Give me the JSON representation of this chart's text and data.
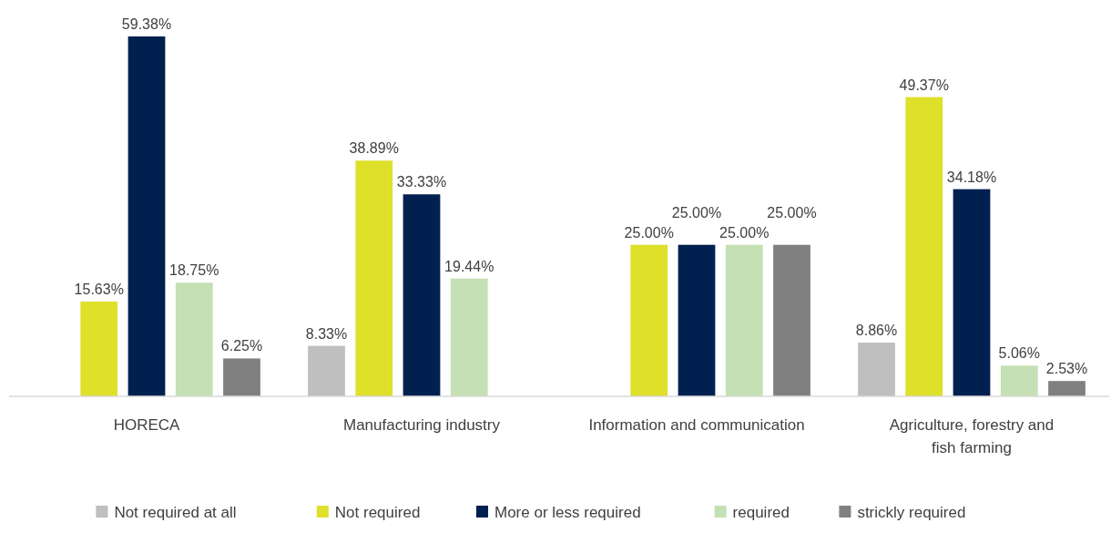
{
  "chart_data": {
    "type": "bar",
    "categories": [
      "HORECA",
      "Manufacturing industry",
      "Information and communication",
      "Agriculture, forestry and fish farming"
    ],
    "series": [
      {
        "name": "Not required at all",
        "color": "#bfbfbf",
        "values": [
          null,
          8.33,
          null,
          8.86
        ],
        "value_labels": [
          null,
          "8.33%",
          null,
          "8.86%"
        ]
      },
      {
        "name": "Not required",
        "color": "#dfe02a",
        "values": [
          15.63,
          38.89,
          25.0,
          49.37
        ],
        "value_labels": [
          "15.63%",
          "38.89%",
          "25.00%",
          "49.37%"
        ]
      },
      {
        "name": "More or less required",
        "color": "#002050",
        "values": [
          59.38,
          33.33,
          25.0,
          34.18
        ],
        "value_labels": [
          "59.38%",
          "33.33%",
          "25.00%",
          "34.18%"
        ]
      },
      {
        "name": "required",
        "color": "#c5e0b4",
        "values": [
          18.75,
          19.44,
          25.0,
          5.06
        ],
        "value_labels": [
          "18.75%",
          "19.44%",
          "25.00%",
          "5.06%"
        ]
      },
      {
        "name": "strickly required",
        "color": "#808080",
        "values": [
          6.25,
          null,
          25.0,
          2.53
        ],
        "value_labels": [
          "6.25%",
          null,
          "25.00%",
          "2.53%"
        ]
      }
    ],
    "legend": "bottom",
    "grid": false
  }
}
